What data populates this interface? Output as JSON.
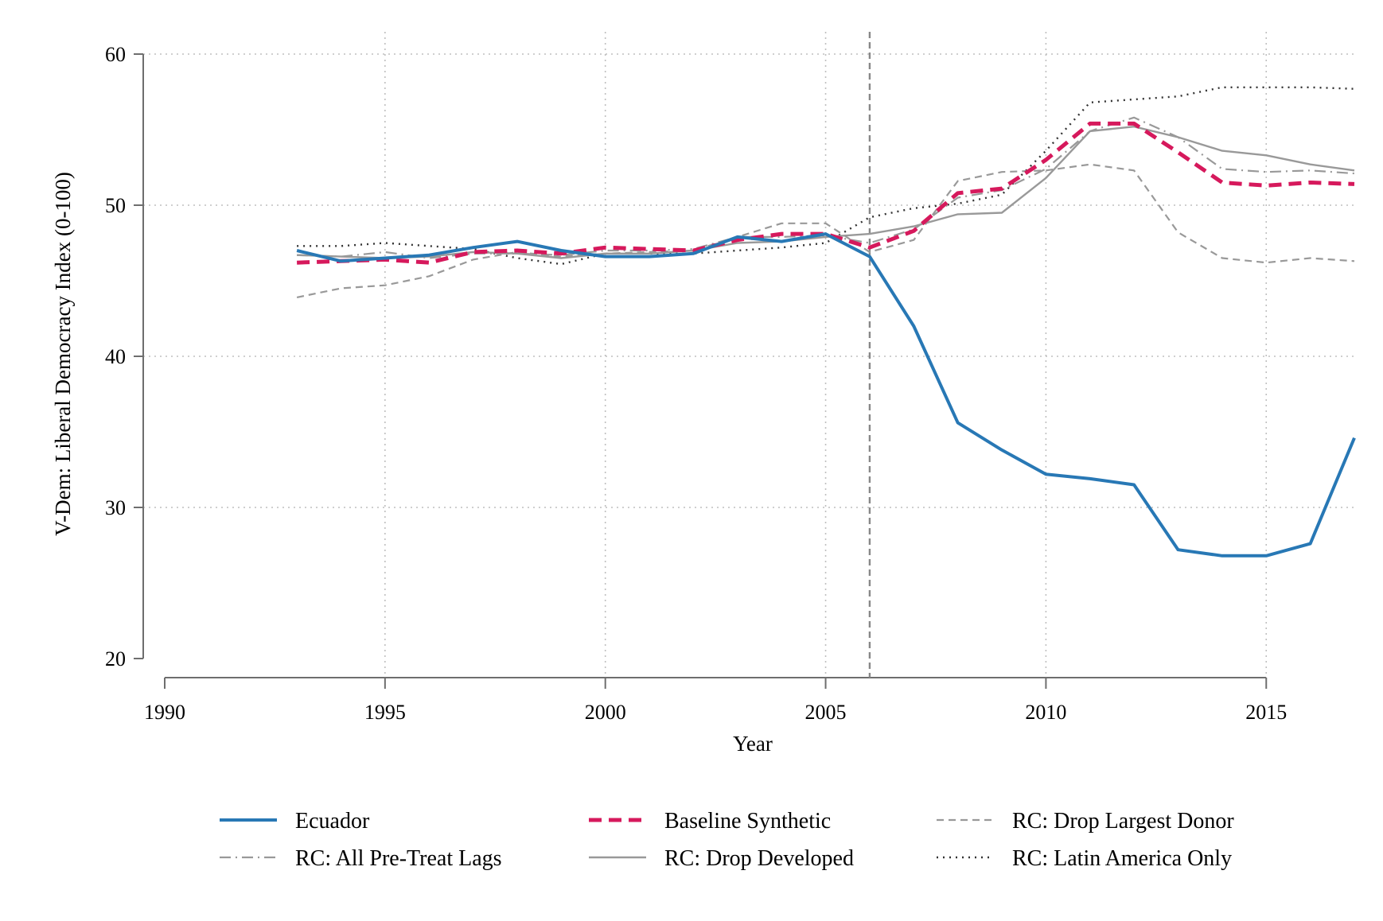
{
  "chart_data": {
    "type": "line",
    "title": "",
    "xlabel": "Year",
    "ylabel": "V-Dem: Liberal Democracy Index (0-100)",
    "xlim": [
      1990,
      2017
    ],
    "ylim": [
      20,
      60
    ],
    "x_ticks": [
      1990,
      1995,
      2000,
      2005,
      2010,
      2015
    ],
    "y_ticks": [
      20,
      30,
      40,
      50,
      60
    ],
    "grid": true,
    "treatment_line_x": 2006,
    "legend_position": "bottom",
    "x": [
      1993,
      1994,
      1995,
      1996,
      1997,
      1998,
      1999,
      2000,
      2001,
      2002,
      2003,
      2004,
      2005,
      2006,
      2007,
      2008,
      2009,
      2010,
      2011,
      2012,
      2013,
      2014,
      2015,
      2016,
      2017
    ],
    "series": [
      {
        "name": "Ecuador",
        "color": "#2878b5",
        "style": "solid",
        "values": [
          47.0,
          46.3,
          46.5,
          46.7,
          47.2,
          47.6,
          47.0,
          46.6,
          46.6,
          46.8,
          47.9,
          47.6,
          48.1,
          46.6,
          42.0,
          35.6,
          33.8,
          32.2,
          31.9,
          31.5,
          27.2,
          26.8,
          26.8,
          27.6,
          34.6
        ]
      },
      {
        "name": "Baseline Synthetic",
        "color": "#d6195c",
        "style": "dashed",
        "values": [
          46.2,
          46.3,
          46.4,
          46.2,
          46.9,
          47.0,
          46.8,
          47.2,
          47.1,
          47.0,
          47.7,
          48.1,
          48.1,
          47.2,
          48.3,
          50.8,
          51.1,
          53.0,
          55.4,
          55.4,
          53.5,
          51.5,
          51.3,
          51.5,
          51.4
        ]
      },
      {
        "name": "RC: Drop Largest Donor",
        "color": "#999999",
        "style": "short-dash",
        "values": [
          43.9,
          44.5,
          44.7,
          45.3,
          46.4,
          46.9,
          46.6,
          46.8,
          46.9,
          47.0,
          47.9,
          48.8,
          48.8,
          46.9,
          47.7,
          51.6,
          52.2,
          52.3,
          52.7,
          52.3,
          48.2,
          46.5,
          46.2,
          46.5,
          46.3
        ]
      },
      {
        "name": "RC: All Pre-Treat Lags",
        "color": "#999999",
        "style": "dash-dot",
        "values": [
          46.7,
          46.6,
          46.9,
          46.5,
          46.8,
          46.8,
          46.7,
          47.0,
          47.0,
          47.1,
          47.9,
          47.9,
          48.0,
          47.5,
          48.4,
          50.5,
          51.0,
          52.4,
          54.9,
          55.8,
          54.5,
          52.4,
          52.2,
          52.3,
          52.1
        ]
      },
      {
        "name": "RC: Drop Developed",
        "color": "#999999",
        "style": "solid",
        "values": [
          46.7,
          46.6,
          46.5,
          46.6,
          46.9,
          46.8,
          46.5,
          46.8,
          46.8,
          47.0,
          47.5,
          47.6,
          47.9,
          48.1,
          48.6,
          49.4,
          49.5,
          51.8,
          54.9,
          55.2,
          54.5,
          53.6,
          53.3,
          52.7,
          52.3
        ]
      },
      {
        "name": "RC: Latin America Only",
        "color": "#333333",
        "style": "dotted",
        "values": [
          47.3,
          47.3,
          47.5,
          47.3,
          47.1,
          46.5,
          46.1,
          46.8,
          46.8,
          46.8,
          47.0,
          47.2,
          47.5,
          49.2,
          49.8,
          50.1,
          50.7,
          53.6,
          56.8,
          57.0,
          57.2,
          57.8,
          57.8,
          57.8,
          57.7
        ]
      }
    ],
    "legend_order": [
      "Ecuador",
      "Baseline Synthetic",
      "RC: Drop Largest Donor",
      "RC: All Pre-Treat Lags",
      "RC: Drop Developed",
      "RC: Latin America Only"
    ]
  }
}
